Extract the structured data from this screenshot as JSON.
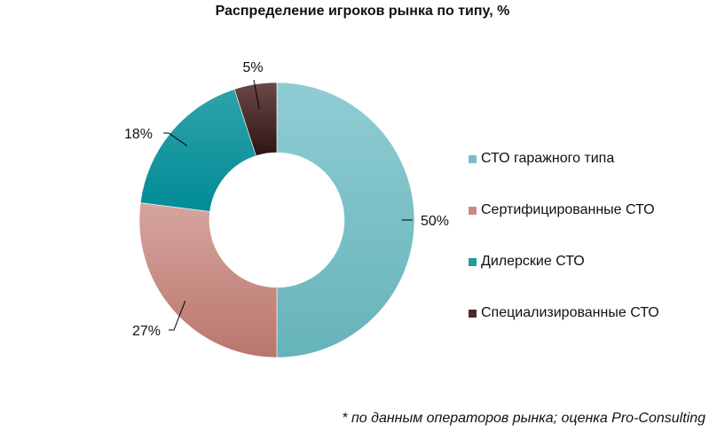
{
  "chart_data": {
    "type": "pie",
    "donut": true,
    "title": "Распределение игроков рынка по типу, %",
    "categories": [
      "СТО гаражного типа",
      "Сертифицированные СТО",
      "Дилерские СТО",
      "Специализированные СТО"
    ],
    "values": [
      50,
      27,
      18,
      5
    ],
    "value_labels": [
      "50%",
      "27%",
      "18%",
      "5%"
    ],
    "colors": [
      "#76c1c8",
      "#c98a82",
      "#1f9aa2",
      "#4b2a2a"
    ],
    "legend_position": "right"
  },
  "footnote": "* по данным операторов рынка; оценка Pro-Consulting"
}
